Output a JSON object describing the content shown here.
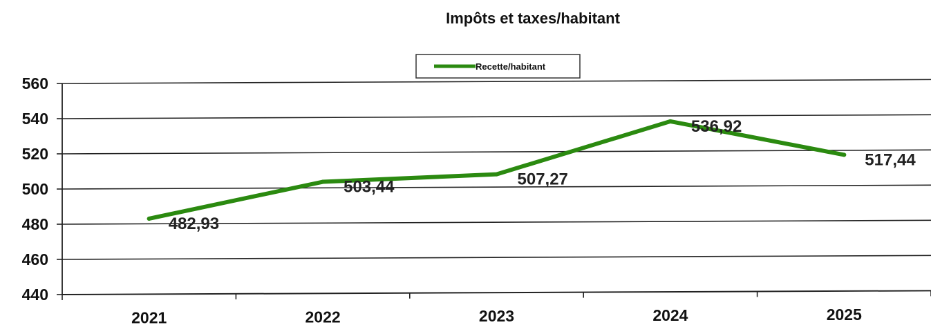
{
  "chart_data": {
    "type": "line",
    "title": "Impôts et taxes/habitant",
    "xlabel": "",
    "ylabel": "",
    "categories": [
      "2021",
      "2022",
      "2023",
      "2024",
      "2025"
    ],
    "series": [
      {
        "name": "Recette/habitant",
        "values": [
          482.93,
          503.44,
          507.27,
          536.92,
          517.44
        ],
        "data_labels": [
          "482,93",
          "503,44",
          "507,27",
          "536,92",
          "517,44"
        ]
      }
    ],
    "ylim": [
      440,
      560
    ],
    "yticks": [
      440,
      460,
      480,
      500,
      520,
      540,
      560
    ],
    "grid": true,
    "legend_position": "top-center",
    "colors": {
      "line": "#2b8a10",
      "grid": "#222222",
      "text": "#111111"
    }
  }
}
